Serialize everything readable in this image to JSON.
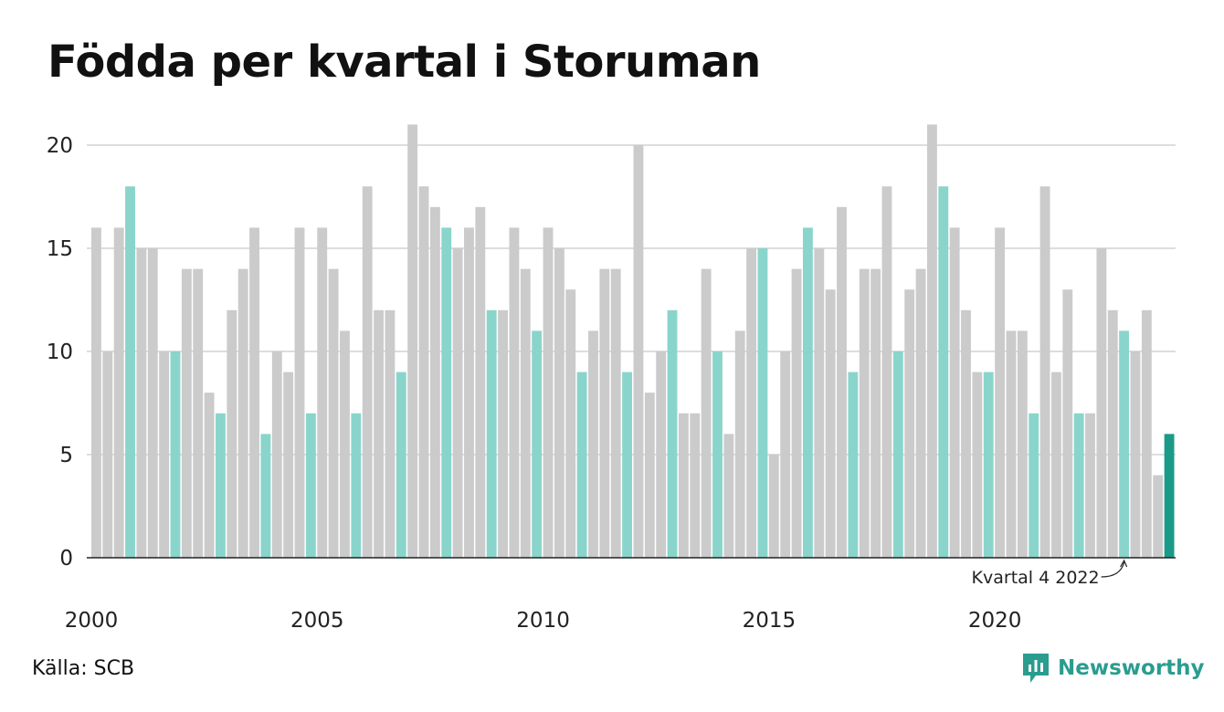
{
  "title": "Födda per kvartal i Storuman",
  "source": "Källa: SCB",
  "brand": "Newsworthy",
  "colors": {
    "bar_default": "#cbcbcb",
    "bar_q4": "#8ad5cb",
    "bar_latest": "#1b9a8a",
    "grid": "#dddddd",
    "brand": "#2a9d8f"
  },
  "chart_data": {
    "type": "bar",
    "title": "Födda per kvartal i Storuman",
    "xlabel": "",
    "ylabel": "",
    "ylim": [
      0,
      21
    ],
    "yticks": [
      0,
      5,
      10,
      15,
      20
    ],
    "xtick_labels": [
      "2000",
      "2005",
      "2010",
      "2015",
      "2020"
    ],
    "grid": "horizontal",
    "start": "2000 Q1",
    "categories": [
      "2000 Q1",
      "2000 Q2",
      "2000 Q3",
      "2000 Q4",
      "2001 Q1",
      "2001 Q2",
      "2001 Q3",
      "2001 Q4",
      "2002 Q1",
      "2002 Q2",
      "2002 Q3",
      "2002 Q4",
      "2003 Q1",
      "2003 Q2",
      "2003 Q3",
      "2003 Q4",
      "2004 Q1",
      "2004 Q2",
      "2004 Q3",
      "2004 Q4",
      "2005 Q1",
      "2005 Q2",
      "2005 Q3",
      "2005 Q4",
      "2006 Q1",
      "2006 Q2",
      "2006 Q3",
      "2006 Q4",
      "2007 Q1",
      "2007 Q2",
      "2007 Q3",
      "2007 Q4",
      "2008 Q1",
      "2008 Q2",
      "2008 Q3",
      "2008 Q4",
      "2009 Q1",
      "2009 Q2",
      "2009 Q3",
      "2009 Q4",
      "2010 Q1",
      "2010 Q2",
      "2010 Q3",
      "2010 Q4",
      "2011 Q1",
      "2011 Q2",
      "2011 Q3",
      "2011 Q4",
      "2012 Q1",
      "2012 Q2",
      "2012 Q3",
      "2012 Q4",
      "2013 Q1",
      "2013 Q2",
      "2013 Q3",
      "2013 Q4",
      "2014 Q1",
      "2014 Q2",
      "2014 Q3",
      "2014 Q4",
      "2015 Q1",
      "2015 Q2",
      "2015 Q3",
      "2015 Q4",
      "2016 Q1",
      "2016 Q2",
      "2016 Q3",
      "2016 Q4",
      "2017 Q1",
      "2017 Q2",
      "2017 Q3",
      "2017 Q4",
      "2018 Q1",
      "2018 Q2",
      "2018 Q3",
      "2018 Q4",
      "2019 Q1",
      "2019 Q2",
      "2019 Q3",
      "2019 Q4",
      "2020 Q1",
      "2020 Q2",
      "2020 Q3",
      "2020 Q4",
      "2021 Q1",
      "2021 Q2",
      "2021 Q3",
      "2021 Q4",
      "2022 Q1",
      "2022 Q2",
      "2022 Q3",
      "2022 Q4",
      "2023 Q1",
      "2023 Q2",
      "2023 Q3",
      "2023 Q4"
    ],
    "values": [
      16,
      10,
      16,
      18,
      15,
      15,
      10,
      10,
      14,
      14,
      8,
      7,
      12,
      14,
      16,
      6,
      10,
      9,
      16,
      7,
      16,
      14,
      11,
      7,
      18,
      12,
      12,
      9,
      21,
      18,
      17,
      16,
      15,
      16,
      17,
      12,
      12,
      16,
      14,
      11,
      16,
      15,
      13,
      9,
      11,
      14,
      14,
      9,
      20,
      8,
      10,
      12,
      7,
      7,
      14,
      10,
      6,
      11,
      15,
      15,
      5,
      10,
      14,
      16,
      15,
      13,
      17,
      9,
      14,
      14,
      18,
      10,
      13,
      14,
      21,
      18,
      16,
      12,
      9,
      9,
      16,
      11,
      11,
      7,
      18,
      9,
      13,
      7,
      7,
      15,
      12,
      11,
      10,
      12,
      4,
      6
    ],
    "highlight_quarter": "Q4",
    "annotation": {
      "text": "Kvartal 4 2022",
      "category": "2022 Q4"
    }
  }
}
